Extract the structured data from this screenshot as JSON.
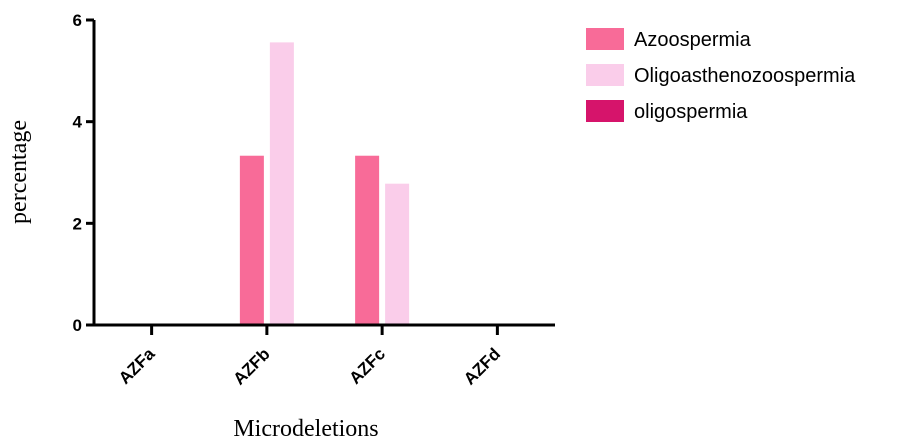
{
  "chart_data": {
    "type": "bar",
    "xlabel": "Microdeletions",
    "ylabel": "percentage",
    "categories": [
      "AZFa",
      "AZFb",
      "AZFc",
      "AZFd"
    ],
    "ylim": [
      0,
      6
    ],
    "yticks": [
      0,
      2,
      4,
      6
    ],
    "grid": false,
    "legend_position": "top-right",
    "series": [
      {
        "name": "Azoospermia",
        "color": "#f86b98",
        "values": [
          0,
          3.33,
          3.33,
          0
        ]
      },
      {
        "name": "Oligoasthenozoospermia",
        "color": "#facdea",
        "values": [
          0,
          5.56,
          2.78,
          0
        ]
      },
      {
        "name": "oligospermia",
        "color": "#d6146b",
        "values": [
          0,
          0,
          0,
          0
        ]
      }
    ]
  }
}
